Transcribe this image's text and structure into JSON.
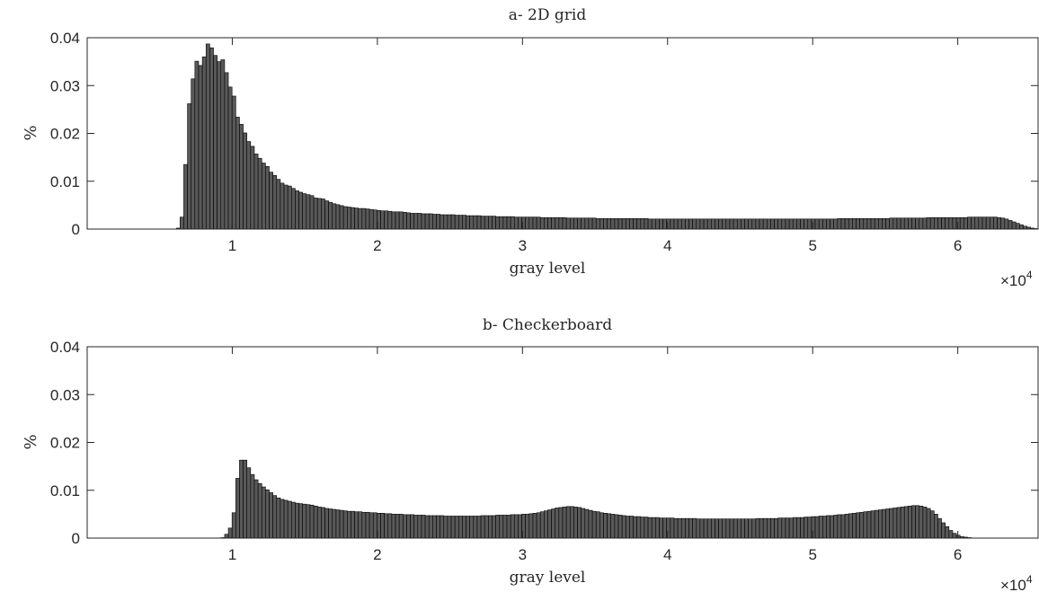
{
  "figure": {
    "exponent_base": "×10",
    "exponent_power": "4"
  },
  "chart_data": [
    {
      "type": "bar",
      "title": "a- 2D grid",
      "xlabel": "gray level",
      "ylabel": "%",
      "xlim": [
        0,
        65535
      ],
      "ylim": [
        0,
        0.04
      ],
      "x_tick_values": [
        10000,
        20000,
        30000,
        40000,
        50000,
        60000
      ],
      "x_tick_labels": [
        "1",
        "2",
        "3",
        "4",
        "5",
        "6"
      ],
      "y_tick_values": [
        0,
        0.01,
        0.02,
        0.03,
        0.04
      ],
      "y_tick_labels": [
        "0",
        "0.01",
        "0.02",
        "0.03",
        "0.04"
      ],
      "grid": false,
      "bar_color": "#595959",
      "edge_color": "#000000",
      "bins": {
        "start": 0,
        "width": 256,
        "values": [
          0,
          0,
          0,
          0,
          0,
          0,
          0,
          0,
          0,
          0,
          0,
          0,
          0,
          0,
          0,
          0,
          0,
          0,
          0,
          0,
          0,
          0,
          0,
          0,
          0.0002,
          0.0025,
          0.0135,
          0.0262,
          0.0314,
          0.0351,
          0.0342,
          0.036,
          0.0387,
          0.0379,
          0.0363,
          0.035,
          0.0354,
          0.0327,
          0.0297,
          0.0278,
          0.0234,
          0.0219,
          0.0201,
          0.0183,
          0.0173,
          0.0157,
          0.0148,
          0.0138,
          0.0131,
          0.0119,
          0.0112,
          0.0104,
          0.0096,
          0.0092,
          0.009,
          0.0085,
          0.008,
          0.0077,
          0.0074,
          0.0072,
          0.007,
          0.0065,
          0.0064,
          0.0063,
          0.0059,
          0.0056,
          0.0053,
          0.0051,
          0.0049,
          0.0047,
          0.0046,
          0.0045,
          0.0044,
          0.0043,
          0.0043,
          0.0042,
          0.0041,
          0.004,
          0.0039,
          0.0038,
          0.0038,
          0.0037,
          0.0036,
          0.0036,
          0.0036,
          0.0035,
          0.0034,
          0.0033,
          0.0033,
          0.0033,
          0.0032,
          0.0032,
          0.0032,
          0.0031,
          0.0031,
          0.003,
          0.003,
          0.003,
          0.003,
          0.0029,
          0.0029,
          0.0029,
          0.0028,
          0.0028,
          0.0028,
          0.0028,
          0.0027,
          0.0027,
          0.0027,
          0.0027,
          0.0026,
          0.0026,
          0.0026,
          0.0026,
          0.0026,
          0.0025,
          0.0025,
          0.0025,
          0.0025,
          0.0025,
          0.0025,
          0.0025,
          0.0024,
          0.0024,
          0.0024,
          0.0024,
          0.0024,
          0.0024,
          0.0024,
          0.0023,
          0.0023,
          0.0023,
          0.0023,
          0.0023,
          0.0023,
          0.0023,
          0.0023,
          0.0022,
          0.0022,
          0.0022,
          0.0022,
          0.0022,
          0.0022,
          0.0022,
          0.0022,
          0.0022,
          0.0022,
          0.0022,
          0.0022,
          0.0022,
          0.0022,
          0.0021,
          0.0021,
          0.0021,
          0.0021,
          0.0021,
          0.0021,
          0.0021,
          0.0021,
          0.0021,
          0.0021,
          0.0021,
          0.0021,
          0.0021,
          0.0021,
          0.0021,
          0.0021,
          0.0021,
          0.0021,
          0.0021,
          0.0021,
          0.0021,
          0.0021,
          0.0021,
          0.0021,
          0.0021,
          0.0021,
          0.0021,
          0.0021,
          0.0021,
          0.0021,
          0.0021,
          0.0021,
          0.0021,
          0.0021,
          0.0021,
          0.0021,
          0.0021,
          0.0021,
          0.0021,
          0.0021,
          0.0021,
          0.0021,
          0.0021,
          0.0021,
          0.0021,
          0.0021,
          0.0021,
          0.0021,
          0.0021,
          0.0021,
          0.0021,
          0.0022,
          0.0022,
          0.0022,
          0.0022,
          0.0022,
          0.0022,
          0.0022,
          0.0022,
          0.0022,
          0.0022,
          0.0022,
          0.0022,
          0.0022,
          0.0022,
          0.0023,
          0.0023,
          0.0023,
          0.0023,
          0.0023,
          0.0023,
          0.0023,
          0.0023,
          0.0023,
          0.0023,
          0.0024,
          0.0024,
          0.0024,
          0.0024,
          0.0024,
          0.0024,
          0.0024,
          0.0024,
          0.0024,
          0.0024,
          0.0024,
          0.0025,
          0.0025,
          0.0025,
          0.0025,
          0.0025,
          0.0025,
          0.0025,
          0.0025,
          0.0024,
          0.0023,
          0.0021,
          0.0018,
          0.0015,
          0.0012,
          0.0009,
          0.0006,
          0.0004,
          0.0002,
          0.0001
        ]
      }
    },
    {
      "type": "bar",
      "title": "b- Checkerboard",
      "xlabel": "gray level",
      "ylabel": "%",
      "xlim": [
        0,
        65535
      ],
      "ylim": [
        0,
        0.04
      ],
      "x_tick_values": [
        10000,
        20000,
        30000,
        40000,
        50000,
        60000
      ],
      "x_tick_labels": [
        "1",
        "2",
        "3",
        "4",
        "5",
        "6"
      ],
      "y_tick_values": [
        0,
        0.01,
        0.02,
        0.03,
        0.04
      ],
      "y_tick_labels": [
        "0",
        "0.01",
        "0.02",
        "0.03",
        "0.04"
      ],
      "grid": false,
      "bar_color": "#595959",
      "edge_color": "#000000",
      "bins": {
        "start": 0,
        "width": 256,
        "values": [
          0,
          0,
          0,
          0,
          0,
          0,
          0,
          0,
          0,
          0,
          0,
          0,
          0,
          0,
          0,
          0,
          0,
          0,
          0,
          0,
          0,
          0,
          0,
          0,
          0,
          0,
          0,
          0,
          0,
          0,
          0,
          0,
          0,
          0,
          0,
          0,
          0.0001,
          0.0008,
          0.0021,
          0.0053,
          0.0125,
          0.0163,
          0.0163,
          0.0147,
          0.0133,
          0.0122,
          0.0114,
          0.0107,
          0.0101,
          0.0095,
          0.0089,
          0.0084,
          0.0081,
          0.0079,
          0.0077,
          0.0075,
          0.0073,
          0.0072,
          0.0071,
          0.007,
          0.0069,
          0.0067,
          0.0065,
          0.0064,
          0.0062,
          0.0061,
          0.006,
          0.0059,
          0.0058,
          0.0057,
          0.0056,
          0.0056,
          0.0055,
          0.0055,
          0.0054,
          0.0054,
          0.0053,
          0.0053,
          0.0052,
          0.0052,
          0.0051,
          0.0051,
          0.005,
          0.005,
          0.005,
          0.0049,
          0.0049,
          0.0049,
          0.0048,
          0.0048,
          0.0048,
          0.0047,
          0.0047,
          0.0047,
          0.0047,
          0.0047,
          0.0046,
          0.0046,
          0.0046,
          0.0046,
          0.0046,
          0.0046,
          0.0046,
          0.0046,
          0.0046,
          0.0046,
          0.0047,
          0.0047,
          0.0047,
          0.0047,
          0.0048,
          0.0048,
          0.0048,
          0.0048,
          0.0049,
          0.0049,
          0.0049,
          0.005,
          0.005,
          0.0051,
          0.0052,
          0.0053,
          0.0055,
          0.0057,
          0.0059,
          0.0061,
          0.0063,
          0.0064,
          0.0065,
          0.0066,
          0.0066,
          0.0065,
          0.0064,
          0.0062,
          0.006,
          0.0058,
          0.0056,
          0.0055,
          0.0053,
          0.0052,
          0.0051,
          0.005,
          0.0049,
          0.0048,
          0.0047,
          0.0046,
          0.0046,
          0.0045,
          0.0045,
          0.0044,
          0.0044,
          0.0043,
          0.0043,
          0.0043,
          0.0042,
          0.0042,
          0.0042,
          0.0042,
          0.0041,
          0.0041,
          0.0041,
          0.0041,
          0.0041,
          0.0041,
          0.004,
          0.004,
          0.004,
          0.004,
          0.004,
          0.004,
          0.004,
          0.004,
          0.004,
          0.004,
          0.004,
          0.004,
          0.004,
          0.004,
          0.004,
          0.004,
          0.0041,
          0.0041,
          0.0041,
          0.0041,
          0.0041,
          0.0041,
          0.0042,
          0.0042,
          0.0042,
          0.0042,
          0.0043,
          0.0043,
          0.0043,
          0.0044,
          0.0044,
          0.0045,
          0.0045,
          0.0046,
          0.0046,
          0.0047,
          0.0047,
          0.0048,
          0.0049,
          0.0049,
          0.005,
          0.0051,
          0.0052,
          0.0053,
          0.0054,
          0.0055,
          0.0056,
          0.0057,
          0.0058,
          0.0059,
          0.006,
          0.0061,
          0.0062,
          0.0063,
          0.0064,
          0.0065,
          0.0066,
          0.0067,
          0.0068,
          0.0068,
          0.0067,
          0.0065,
          0.0062,
          0.0057,
          0.005,
          0.0041,
          0.0032,
          0.0024,
          0.0016,
          0.001,
          0.0006,
          0.0003,
          0.0002,
          0.0001,
          0,
          0,
          0,
          0,
          0,
          0,
          0,
          0,
          0,
          0,
          0,
          0,
          0,
          0,
          0,
          0,
          0,
          0
        ]
      }
    }
  ]
}
